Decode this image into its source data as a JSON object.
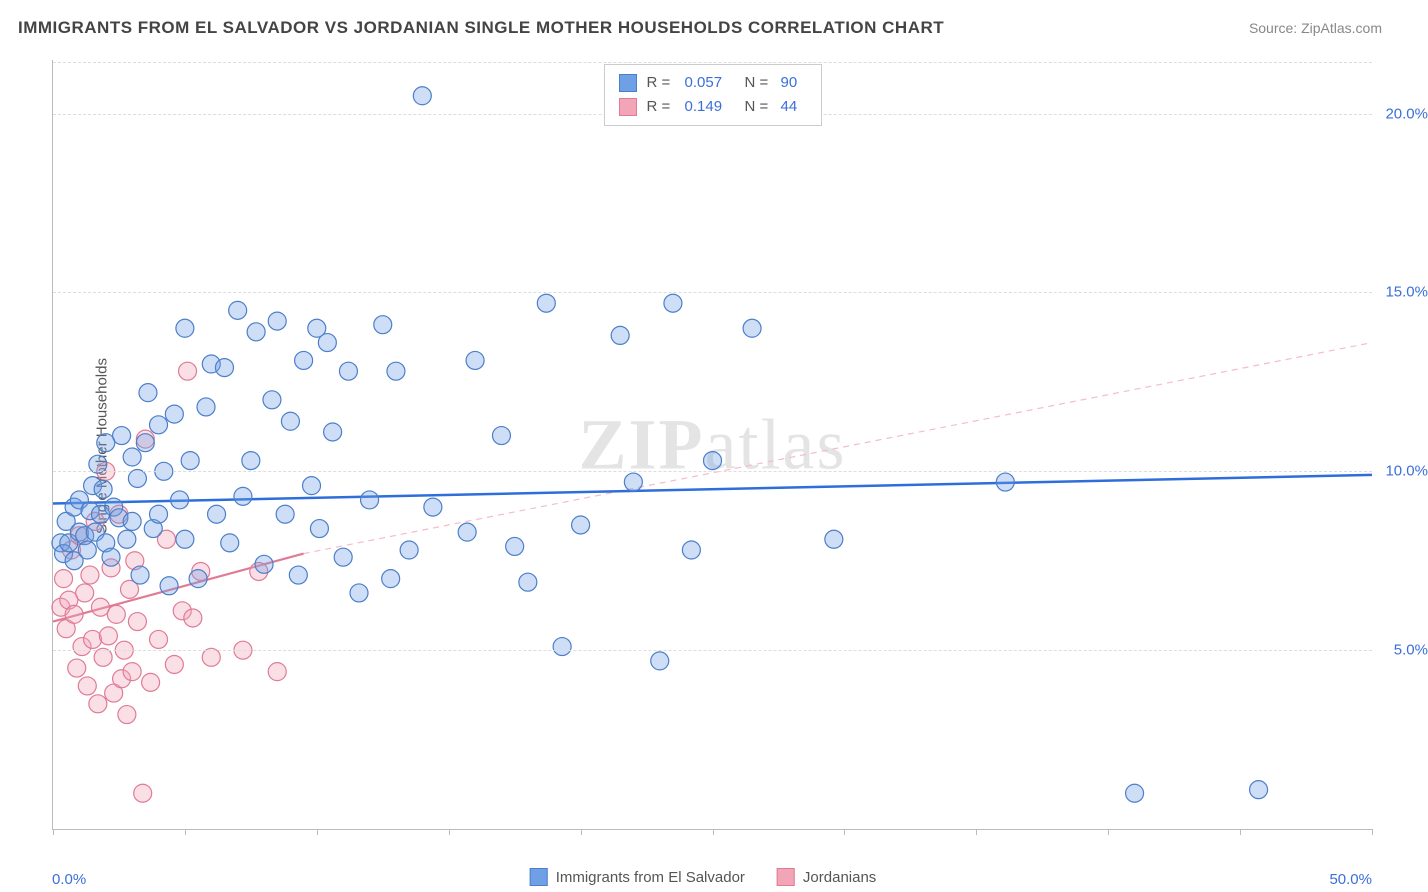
{
  "title": "IMMIGRANTS FROM EL SALVADOR VS JORDANIAN SINGLE MOTHER HOUSEHOLDS CORRELATION CHART",
  "source": "Source: ZipAtlas.com",
  "watermark_a": "ZIP",
  "watermark_b": "atlas",
  "ylabel": "Single Mother Households",
  "chart": {
    "type": "scatter",
    "xlim": [
      0,
      50
    ],
    "ylim": [
      0,
      21.5
    ],
    "background_color": "#ffffff",
    "grid_color": "#dddddd",
    "grid_dash": true,
    "axis_color": "#bbbbbb",
    "tick_label_color": "#3b6fd8",
    "tick_label_fontsize": 15,
    "x_ticks": [
      0,
      5,
      10,
      15,
      20,
      25,
      30,
      35,
      40,
      45,
      50
    ],
    "x_tick_labels": {
      "0": "0.0%",
      "50": "50.0%"
    },
    "y_ticks": [
      5,
      10,
      15,
      20
    ],
    "y_tick_labels": {
      "5": "5.0%",
      "10": "10.0%",
      "15": "15.0%",
      "20": "20.0%"
    },
    "marker_radius": 9,
    "marker_fill_opacity": 0.35,
    "marker_stroke_width": 1.2,
    "series": [
      {
        "name": "Immigrants from El Salvador",
        "color": "#6fa0e6",
        "stroke": "#4c7fc9",
        "line_color": "#2e6edb",
        "line_width": 2.5,
        "line_dash": "none",
        "R": "0.057",
        "N": "90",
        "trend": {
          "x1": 0,
          "y1": 9.1,
          "x2": 50,
          "y2": 9.9
        },
        "points": [
          [
            0.3,
            8.0
          ],
          [
            0.4,
            7.7
          ],
          [
            0.5,
            8.6
          ],
          [
            0.6,
            8.0
          ],
          [
            0.8,
            7.5
          ],
          [
            0.8,
            9.0
          ],
          [
            1.0,
            8.3
          ],
          [
            1.0,
            9.2
          ],
          [
            1.2,
            8.2
          ],
          [
            1.3,
            7.8
          ],
          [
            1.4,
            8.9
          ],
          [
            1.5,
            9.6
          ],
          [
            1.6,
            8.3
          ],
          [
            1.7,
            10.2
          ],
          [
            1.8,
            8.8
          ],
          [
            1.9,
            9.5
          ],
          [
            2.0,
            8.0
          ],
          [
            2.0,
            10.8
          ],
          [
            2.2,
            7.6
          ],
          [
            2.3,
            9.0
          ],
          [
            2.5,
            8.7
          ],
          [
            2.6,
            11.0
          ],
          [
            2.8,
            8.1
          ],
          [
            3.0,
            8.6
          ],
          [
            3.0,
            10.4
          ],
          [
            3.2,
            9.8
          ],
          [
            3.3,
            7.1
          ],
          [
            3.5,
            10.8
          ],
          [
            3.6,
            12.2
          ],
          [
            3.8,
            8.4
          ],
          [
            4.0,
            8.8
          ],
          [
            4.0,
            11.3
          ],
          [
            4.2,
            10.0
          ],
          [
            4.4,
            6.8
          ],
          [
            4.6,
            11.6
          ],
          [
            4.8,
            9.2
          ],
          [
            5.0,
            8.1
          ],
          [
            5.0,
            14.0
          ],
          [
            5.2,
            10.3
          ],
          [
            5.5,
            7.0
          ],
          [
            5.8,
            11.8
          ],
          [
            6.0,
            13.0
          ],
          [
            6.2,
            8.8
          ],
          [
            6.5,
            12.9
          ],
          [
            6.7,
            8.0
          ],
          [
            7.0,
            14.5
          ],
          [
            7.2,
            9.3
          ],
          [
            7.5,
            10.3
          ],
          [
            7.7,
            13.9
          ],
          [
            8.0,
            7.4
          ],
          [
            8.3,
            12.0
          ],
          [
            8.5,
            14.2
          ],
          [
            8.8,
            8.8
          ],
          [
            9.0,
            11.4
          ],
          [
            9.3,
            7.1
          ],
          [
            9.5,
            13.1
          ],
          [
            9.8,
            9.6
          ],
          [
            10.0,
            14.0
          ],
          [
            10.1,
            8.4
          ],
          [
            10.4,
            13.6
          ],
          [
            10.6,
            11.1
          ],
          [
            11.0,
            7.6
          ],
          [
            11.2,
            12.8
          ],
          [
            11.6,
            6.6
          ],
          [
            12.0,
            9.2
          ],
          [
            12.5,
            14.1
          ],
          [
            12.8,
            7.0
          ],
          [
            13.0,
            12.8
          ],
          [
            13.5,
            7.8
          ],
          [
            14.0,
            20.5
          ],
          [
            14.4,
            9.0
          ],
          [
            15.7,
            8.3
          ],
          [
            16.0,
            13.1
          ],
          [
            17.0,
            11.0
          ],
          [
            17.5,
            7.9
          ],
          [
            18.0,
            6.9
          ],
          [
            18.7,
            14.7
          ],
          [
            19.3,
            5.1
          ],
          [
            20.0,
            8.5
          ],
          [
            21.5,
            13.8
          ],
          [
            22.0,
            9.7
          ],
          [
            23.0,
            4.7
          ],
          [
            23.5,
            14.7
          ],
          [
            24.2,
            7.8
          ],
          [
            25.0,
            10.3
          ],
          [
            26.5,
            14.0
          ],
          [
            29.6,
            8.1
          ],
          [
            41.0,
            1.0
          ],
          [
            45.7,
            1.1
          ],
          [
            36.1,
            9.7
          ]
        ]
      },
      {
        "name": "Jordanians",
        "color": "#f2a5b6",
        "stroke": "#e07b95",
        "line_color": "#e07b95",
        "line_width": 2.2,
        "line_dash": "none",
        "dash_extension_color": "#f4bcc9",
        "dash_extension_dash": "6,5",
        "R": "0.149",
        "N": "44",
        "trend": {
          "x1": 0,
          "y1": 5.8,
          "x2": 9.5,
          "y2": 7.7
        },
        "trend_extension": {
          "x1": 9.5,
          "y1": 7.7,
          "x2": 50,
          "y2": 13.6
        },
        "points": [
          [
            0.3,
            6.2
          ],
          [
            0.4,
            7.0
          ],
          [
            0.5,
            5.6
          ],
          [
            0.6,
            6.4
          ],
          [
            0.7,
            7.8
          ],
          [
            0.8,
            6.0
          ],
          [
            0.9,
            4.5
          ],
          [
            1.0,
            8.2
          ],
          [
            1.1,
            5.1
          ],
          [
            1.2,
            6.6
          ],
          [
            1.3,
            4.0
          ],
          [
            1.4,
            7.1
          ],
          [
            1.5,
            5.3
          ],
          [
            1.6,
            8.6
          ],
          [
            1.7,
            3.5
          ],
          [
            1.8,
            6.2
          ],
          [
            1.9,
            4.8
          ],
          [
            2.0,
            10.0
          ],
          [
            2.1,
            5.4
          ],
          [
            2.2,
            7.3
          ],
          [
            2.3,
            3.8
          ],
          [
            2.4,
            6.0
          ],
          [
            2.5,
            8.8
          ],
          [
            2.6,
            4.2
          ],
          [
            2.7,
            5.0
          ],
          [
            2.8,
            3.2
          ],
          [
            2.9,
            6.7
          ],
          [
            3.0,
            4.4
          ],
          [
            3.1,
            7.5
          ],
          [
            3.2,
            5.8
          ],
          [
            3.4,
            1.0
          ],
          [
            3.5,
            10.9
          ],
          [
            3.7,
            4.1
          ],
          [
            4.0,
            5.3
          ],
          [
            4.3,
            8.1
          ],
          [
            4.6,
            4.6
          ],
          [
            4.9,
            6.1
          ],
          [
            5.1,
            12.8
          ],
          [
            5.3,
            5.9
          ],
          [
            5.6,
            7.2
          ],
          [
            6.0,
            4.8
          ],
          [
            7.2,
            5.0
          ],
          [
            7.8,
            7.2
          ],
          [
            8.5,
            4.4
          ]
        ]
      }
    ]
  },
  "legend_top_labels": {
    "R": "R =",
    "N": "N ="
  },
  "legend_bottom": [
    {
      "label": "Immigrants from El Salvador",
      "color": "#6fa0e6",
      "stroke": "#4c7fc9"
    },
    {
      "label": "Jordanians",
      "color": "#f2a5b6",
      "stroke": "#e07b95"
    }
  ]
}
